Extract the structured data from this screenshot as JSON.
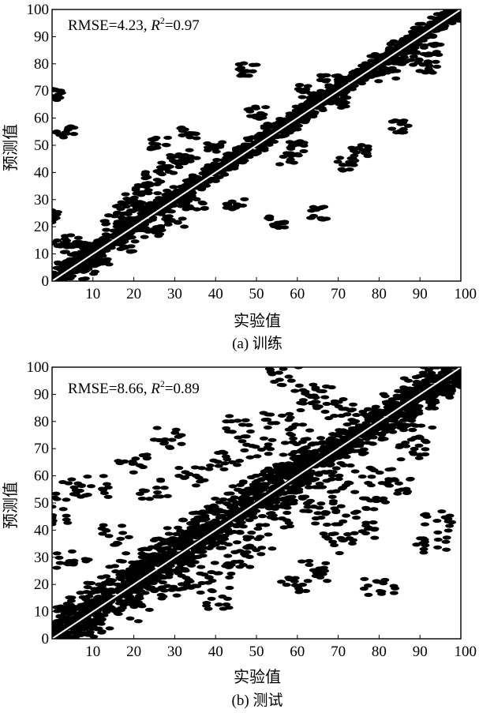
{
  "chart_data": [
    {
      "type": "scatter",
      "panel": "a",
      "caption": "(a) 训练",
      "xlabel": "实验值",
      "ylabel": "预测值",
      "xlim": [
        0,
        100
      ],
      "ylim": [
        0,
        100
      ],
      "xticks": [
        10,
        20,
        30,
        40,
        50,
        60,
        70,
        80,
        90,
        100
      ],
      "yticks": [
        0,
        10,
        20,
        30,
        40,
        50,
        60,
        70,
        80,
        90,
        100
      ],
      "grid": false,
      "reference_line": "y = x",
      "annotation": {
        "rmse_label": "RMSE=4.23, ",
        "r_symbol": "R",
        "r_superscript": "2",
        "r_value": "=0.97"
      },
      "points": [
        [
          3,
          5
        ],
        [
          5,
          8
        ],
        [
          8,
          10
        ],
        [
          10,
          12
        ],
        [
          12,
          14
        ],
        [
          15,
          17
        ],
        [
          18,
          20
        ],
        [
          20,
          21
        ],
        [
          22,
          25
        ],
        [
          25,
          27
        ],
        [
          28,
          30
        ],
        [
          30,
          31
        ],
        [
          32,
          33
        ],
        [
          35,
          36
        ],
        [
          38,
          39
        ],
        [
          40,
          41
        ],
        [
          42,
          43
        ],
        [
          45,
          46
        ],
        [
          48,
          48
        ],
        [
          50,
          51
        ],
        [
          52,
          52
        ],
        [
          55,
          56
        ],
        [
          58,
          58
        ],
        [
          60,
          61
        ],
        [
          62,
          63
        ],
        [
          65,
          66
        ],
        [
          68,
          68
        ],
        [
          70,
          71
        ],
        [
          72,
          73
        ],
        [
          75,
          76
        ],
        [
          78,
          78
        ],
        [
          80,
          81
        ],
        [
          82,
          83
        ],
        [
          85,
          86
        ],
        [
          88,
          88
        ],
        [
          90,
          91
        ],
        [
          92,
          93
        ],
        [
          95,
          95
        ],
        [
          97,
          97
        ],
        [
          99,
          98
        ],
        [
          15,
          22
        ],
        [
          18,
          27
        ],
        [
          20,
          30
        ],
        [
          22,
          34
        ],
        [
          25,
          38
        ],
        [
          28,
          42
        ],
        [
          30,
          44
        ],
        [
          33,
          46
        ],
        [
          5,
          15
        ],
        [
          2,
          13
        ],
        [
          0,
          69
        ],
        [
          3,
          55
        ],
        [
          0,
          24
        ],
        [
          33,
          55
        ],
        [
          26,
          51
        ],
        [
          55,
          22
        ],
        [
          65,
          25
        ],
        [
          72,
          43
        ],
        [
          50,
          62
        ],
        [
          48,
          78
        ],
        [
          75,
          48
        ],
        [
          85,
          57
        ],
        [
          92,
          79
        ],
        [
          45,
          28
        ],
        [
          58,
          45
        ],
        [
          60,
          50
        ],
        [
          68,
          74
        ],
        [
          40,
          50
        ],
        [
          35,
          28
        ],
        [
          30,
          22
        ],
        [
          25,
          18
        ],
        [
          12,
          8
        ],
        [
          18,
          13
        ],
        [
          6,
          3
        ],
        [
          10,
          5
        ],
        [
          82,
          76
        ],
        [
          88,
          82
        ],
        [
          93,
          85
        ],
        [
          70,
          66
        ],
        [
          62,
          70
        ]
      ]
    },
    {
      "type": "scatter",
      "panel": "b",
      "caption": "(b) 测试",
      "xlabel": "实验值",
      "ylabel": "预测值",
      "xlim": [
        0,
        100
      ],
      "ylim": [
        0,
        100
      ],
      "xticks": [
        10,
        20,
        30,
        40,
        50,
        60,
        70,
        80,
        90,
        100
      ],
      "yticks": [
        0,
        10,
        20,
        30,
        40,
        50,
        60,
        70,
        80,
        90,
        100
      ],
      "grid": false,
      "reference_line": "y = x",
      "annotation": {
        "rmse_label": "RMSE=8.66, ",
        "r_symbol": "R",
        "r_superscript": "2",
        "r_value": "=0.89"
      },
      "points": [
        [
          3,
          6
        ],
        [
          5,
          9
        ],
        [
          8,
          12
        ],
        [
          10,
          14
        ],
        [
          12,
          17
        ],
        [
          15,
          20
        ],
        [
          18,
          23
        ],
        [
          20,
          26
        ],
        [
          22,
          28
        ],
        [
          25,
          30
        ],
        [
          28,
          33
        ],
        [
          30,
          35
        ],
        [
          32,
          37
        ],
        [
          35,
          40
        ],
        [
          38,
          43
        ],
        [
          40,
          45
        ],
        [
          42,
          48
        ],
        [
          45,
          50
        ],
        [
          48,
          53
        ],
        [
          50,
          55
        ],
        [
          52,
          57
        ],
        [
          55,
          60
        ],
        [
          58,
          62
        ],
        [
          60,
          64
        ],
        [
          62,
          66
        ],
        [
          65,
          68
        ],
        [
          68,
          70
        ],
        [
          70,
          72
        ],
        [
          72,
          74
        ],
        [
          75,
          77
        ],
        [
          78,
          79
        ],
        [
          80,
          81
        ],
        [
          82,
          83
        ],
        [
          85,
          86
        ],
        [
          88,
          88
        ],
        [
          90,
          90
        ],
        [
          92,
          92
        ],
        [
          95,
          94
        ],
        [
          97,
          96
        ],
        [
          99,
          97
        ],
        [
          28,
          74
        ],
        [
          57,
          97
        ],
        [
          20,
          65
        ],
        [
          10,
          56
        ],
        [
          3,
          55
        ],
        [
          0,
          45
        ],
        [
          5,
          30
        ],
        [
          15,
          38
        ],
        [
          25,
          55
        ],
        [
          35,
          60
        ],
        [
          45,
          78
        ],
        [
          55,
          80
        ],
        [
          62,
          88
        ],
        [
          65,
          90
        ],
        [
          70,
          85
        ],
        [
          60,
          20
        ],
        [
          65,
          25
        ],
        [
          70,
          35
        ],
        [
          75,
          40
        ],
        [
          80,
          19
        ],
        [
          93,
          35
        ],
        [
          95,
          43
        ],
        [
          85,
          55
        ],
        [
          80,
          60
        ],
        [
          78,
          48
        ],
        [
          50,
          35
        ],
        [
          45,
          30
        ],
        [
          40,
          25
        ],
        [
          35,
          22
        ],
        [
          55,
          45
        ],
        [
          65,
          50
        ],
        [
          72,
          58
        ],
        [
          40,
          15
        ],
        [
          30,
          18
        ],
        [
          20,
          10
        ],
        [
          12,
          5
        ],
        [
          8,
          2
        ],
        [
          50,
          70
        ],
        [
          42,
          65
        ],
        [
          90,
          75
        ],
        [
          88,
          70
        ],
        [
          60,
          75
        ],
        [
          58,
          52
        ],
        [
          68,
          45
        ]
      ]
    }
  ]
}
